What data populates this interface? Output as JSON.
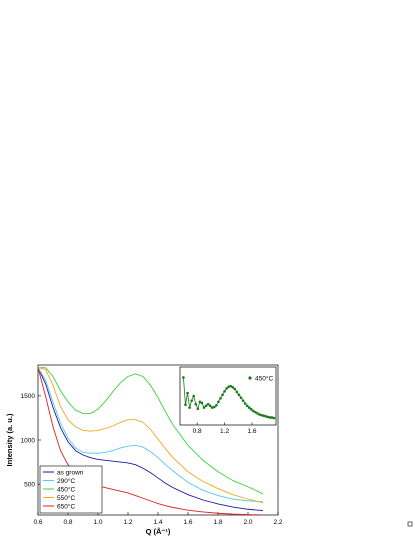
{
  "chart_data": [
    {
      "type": "line",
      "title": "",
      "xlabel": "Q (Å⁻¹)",
      "ylabel": "Intensity (a. u.)",
      "xlim": [
        0.6,
        2.2
      ],
      "ylim": [
        150,
        1850
      ],
      "xticks": [
        "0.6",
        "0.8",
        "1.0",
        "1.2",
        "1.4",
        "1.6",
        "1.8",
        "2.0",
        "2.2"
      ],
      "yticks": [
        "500",
        "1000",
        "1500"
      ],
      "grid": false,
      "legend_position": "bottom-left",
      "x": [
        0.6,
        0.65,
        0.7,
        0.75,
        0.8,
        0.85,
        0.9,
        0.95,
        1.0,
        1.05,
        1.1,
        1.15,
        1.2,
        1.25,
        1.3,
        1.35,
        1.4,
        1.45,
        1.5,
        1.6,
        1.7,
        1.8,
        1.9,
        2.0,
        2.1
      ],
      "series": [
        {
          "name": "as grown",
          "color": "#1a1aa0",
          "values": [
            1820,
            1640,
            1370,
            1140,
            980,
            880,
            830,
            800,
            780,
            770,
            760,
            750,
            740,
            720,
            680,
            630,
            570,
            510,
            460,
            380,
            320,
            275,
            240,
            215,
            200
          ]
        },
        {
          "name": "290°C",
          "color": "#5bc8f0",
          "values": [
            1820,
            1680,
            1430,
            1190,
            1020,
            910,
            860,
            850,
            850,
            860,
            880,
            910,
            930,
            940,
            920,
            870,
            800,
            720,
            650,
            520,
            430,
            370,
            330,
            310,
            300
          ]
        },
        {
          "name": "450°C",
          "color": "#3cd23c",
          "values": [
            1820,
            1820,
            1720,
            1560,
            1430,
            1340,
            1300,
            1300,
            1350,
            1440,
            1550,
            1650,
            1720,
            1750,
            1720,
            1620,
            1480,
            1320,
            1170,
            940,
            770,
            640,
            540,
            470,
            390
          ]
        },
        {
          "name": "550°C",
          "color": "#f0a820",
          "values": [
            1820,
            1800,
            1620,
            1380,
            1230,
            1150,
            1110,
            1100,
            1110,
            1130,
            1160,
            1200,
            1230,
            1230,
            1200,
            1120,
            1010,
            900,
            800,
            640,
            530,
            450,
            380,
            330,
            290
          ]
        },
        {
          "name": "650°C",
          "color": "#e02020",
          "values": [
            1820,
            1500,
            1150,
            880,
            720,
            620,
            560,
            510,
            480,
            460,
            440,
            420,
            400,
            370,
            340,
            310,
            280,
            255,
            235,
            205,
            185,
            170,
            160,
            155,
            150
          ]
        }
      ]
    },
    {
      "type": "scatter",
      "title": "",
      "xlabel": "",
      "ylabel": "",
      "xlim": [
        0.55,
        1.95
      ],
      "ylim": [
        0,
        1
      ],
      "xticks": [
        "0.8",
        "1.2",
        "1.6"
      ],
      "grid": false,
      "legend_position": "top-right",
      "series": [
        {
          "name": "450°C",
          "color": "#1a7a1a",
          "x": [
            0.6,
            0.63,
            0.66,
            0.69,
            0.72,
            0.75,
            0.78,
            0.81,
            0.84,
            0.87,
            0.9,
            0.93,
            0.96,
            0.99,
            1.02,
            1.05,
            1.08,
            1.11,
            1.14,
            1.17,
            1.2,
            1.23,
            1.26,
            1.29,
            1.32,
            1.35,
            1.38,
            1.41,
            1.44,
            1.47,
            1.5,
            1.53,
            1.56,
            1.59,
            1.62,
            1.65,
            1.68,
            1.71,
            1.74,
            1.77,
            1.8,
            1.83,
            1.86,
            1.89,
            1.92
          ],
          "values": [
            0.82,
            0.35,
            0.55,
            0.3,
            0.42,
            0.5,
            0.36,
            0.28,
            0.4,
            0.38,
            0.3,
            0.33,
            0.36,
            0.33,
            0.3,
            0.31,
            0.34,
            0.4,
            0.46,
            0.52,
            0.58,
            0.63,
            0.66,
            0.67,
            0.65,
            0.62,
            0.57,
            0.52,
            0.47,
            0.42,
            0.37,
            0.33,
            0.3,
            0.27,
            0.24,
            0.22,
            0.2,
            0.18,
            0.17,
            0.16,
            0.15,
            0.14,
            0.13,
            0.13,
            0.12
          ]
        }
      ]
    }
  ]
}
